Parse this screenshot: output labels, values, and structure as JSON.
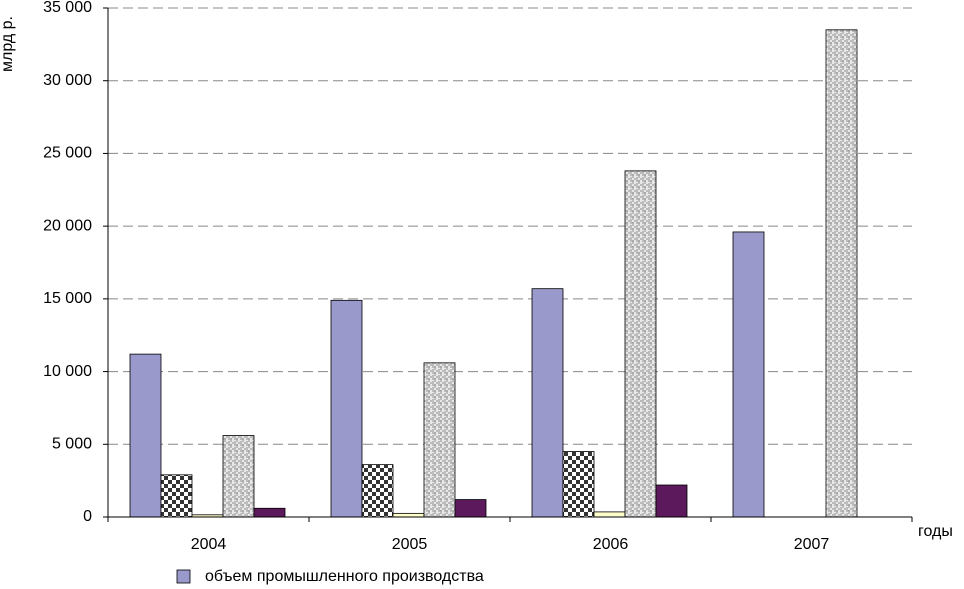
{
  "chart_data": {
    "type": "bar",
    "y_label": "млрд р.",
    "x_label": "годы",
    "categories": [
      "2004",
      "2005",
      "2006",
      "2007"
    ],
    "series": [
      {
        "name": "объем промышленного производства",
        "color": "#9999cc",
        "values": [
          11200,
          14900,
          15700,
          19600
        ]
      },
      {
        "color": "#333333",
        "values": [
          2900,
          3600,
          4500,
          null
        ]
      },
      {
        "color": "#ffffcc",
        "values": [
          150,
          250,
          350,
          null
        ]
      },
      {
        "color": "#a0a0a0",
        "values": [
          5600,
          10600,
          23800,
          33500
        ]
      },
      {
        "color": "#5c1a5c",
        "values": [
          600,
          1200,
          2200,
          null
        ]
      }
    ],
    "ylim": [
      0,
      35000
    ],
    "yticks": [
      0,
      {
        "value": 5000,
        "label": "5 000"
      },
      {
        "value": 10000,
        "label": "10 000"
      },
      {
        "value": 15000,
        "label": "15 000"
      },
      {
        "value": 20000,
        "label": "20 000"
      },
      {
        "value": 25000,
        "label": "25 000"
      },
      {
        "value": 30000,
        "label": "30 000"
      },
      {
        "value": 35000,
        "label": "35 000"
      }
    ],
    "grid": true
  }
}
